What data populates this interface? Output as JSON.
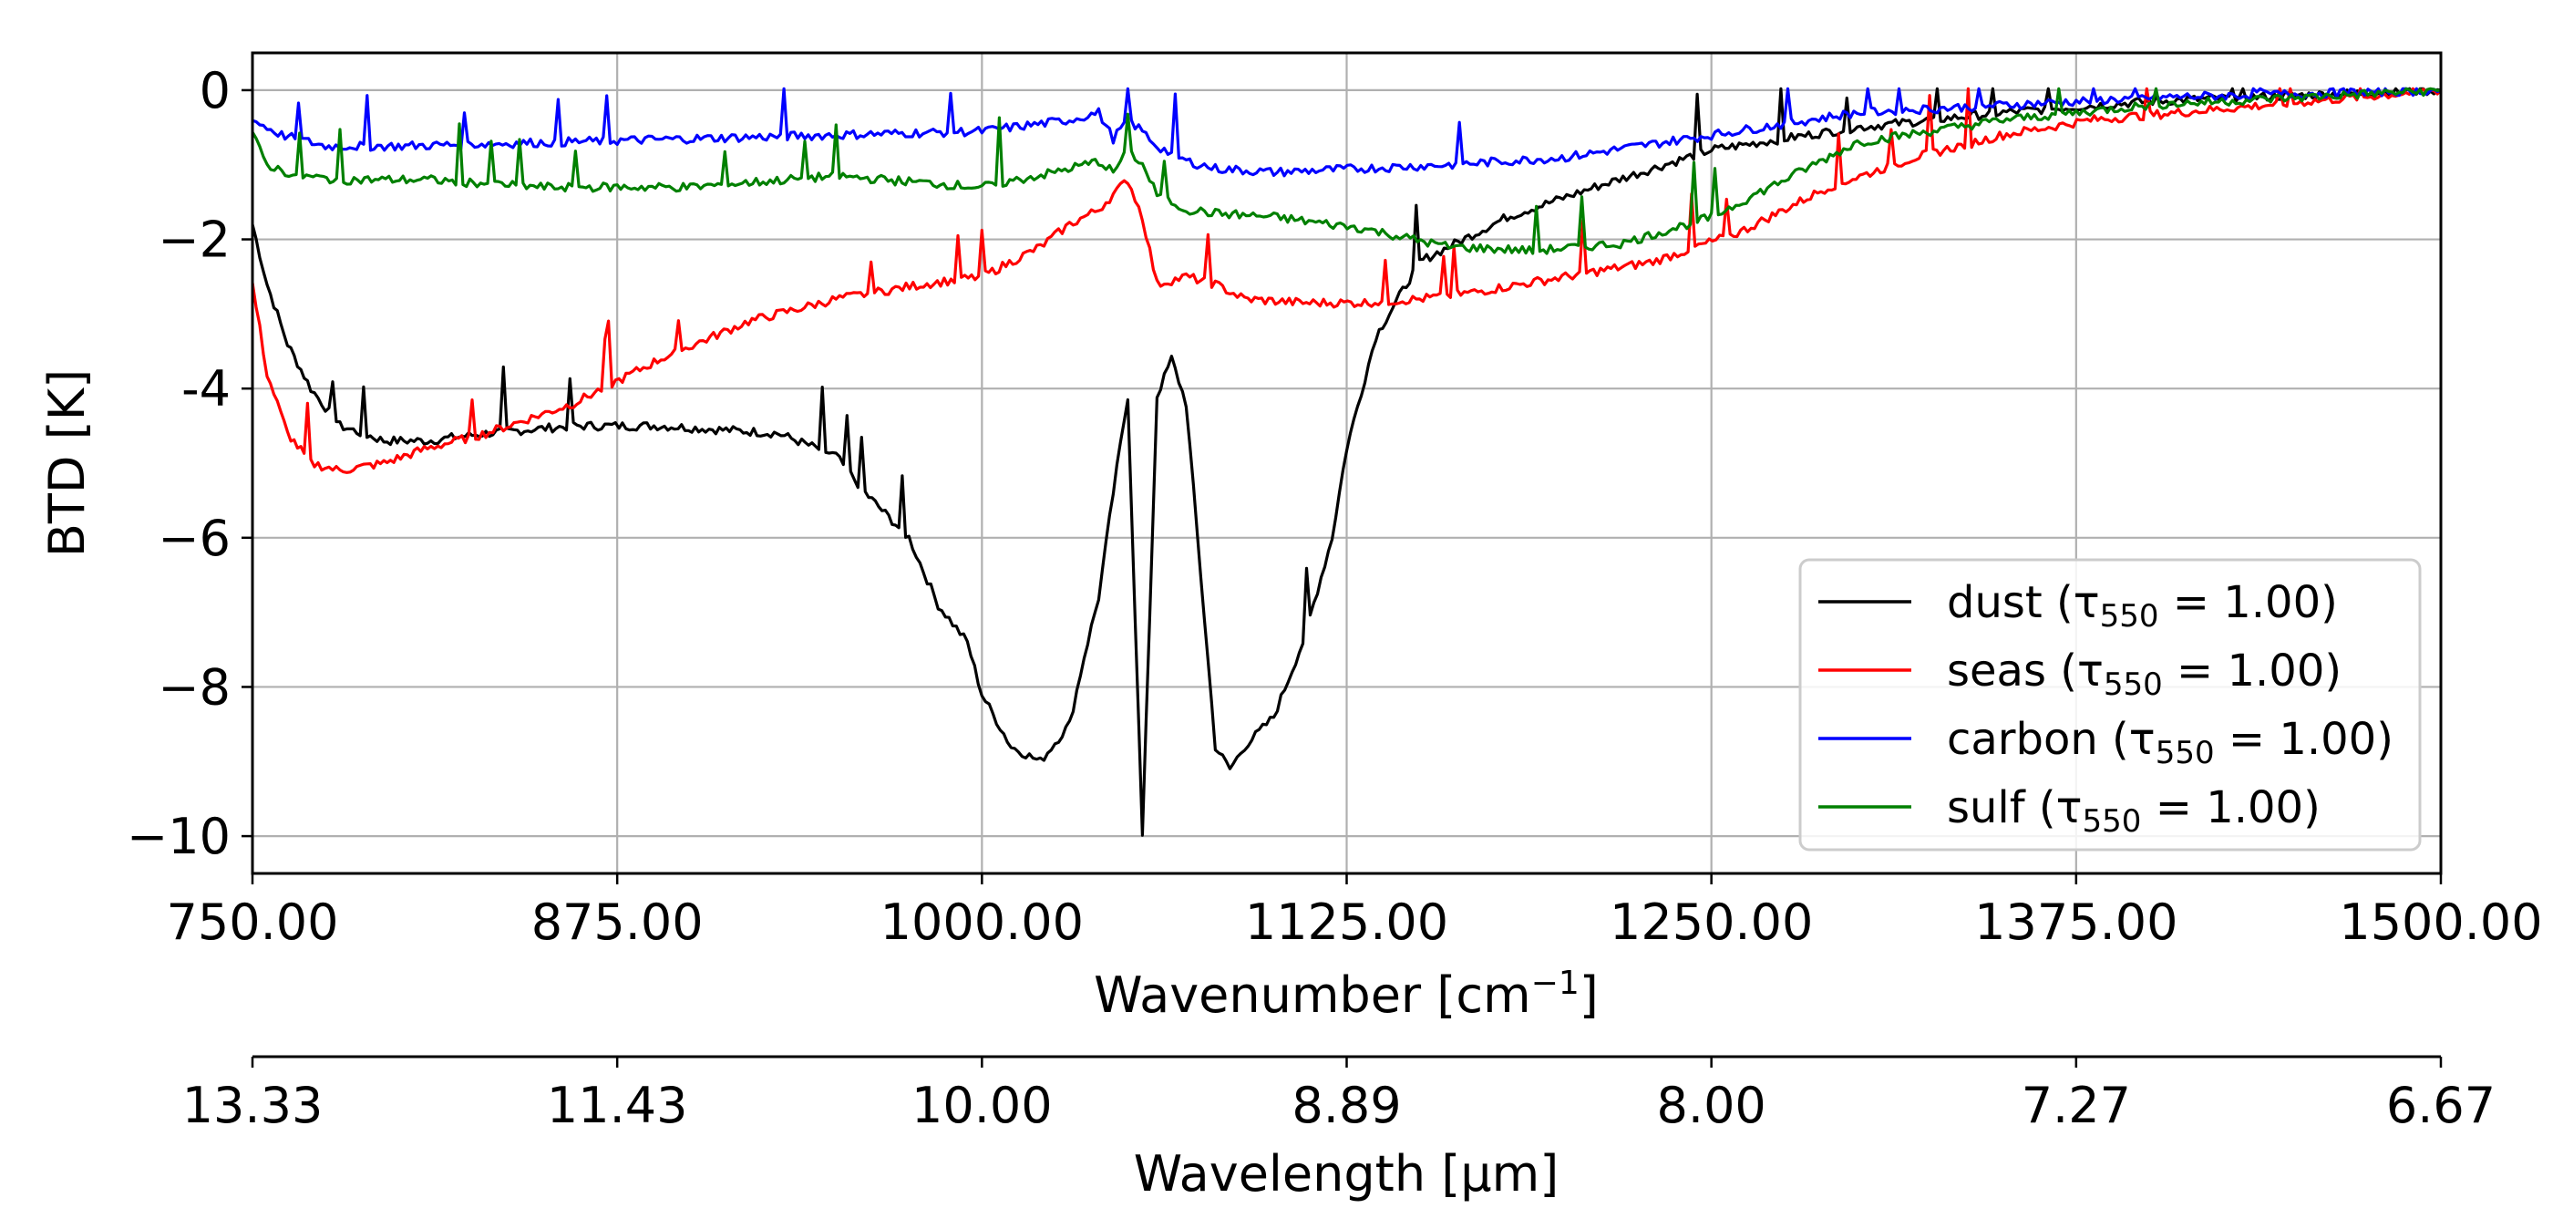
{
  "chart_data": {
    "type": "line",
    "xlabel": "Wavenumber [cm",
    "xlabel_sup": "−1",
    "xlabel_tail": "]",
    "ylabel": "BTD [K]",
    "xlim": [
      750,
      1500
    ],
    "ylim": [
      -10.5,
      0.5
    ],
    "grid": true,
    "x_ticks": [
      "750.00",
      "875.00",
      "1000.00",
      "1125.00",
      "1250.00",
      "1375.00",
      "1500.00"
    ],
    "y_ticks": [
      {
        "value": 0,
        "label": "0"
      },
      {
        "value": -2,
        "label": "−2"
      },
      {
        "value": -4,
        "label": "-4"
      },
      {
        "value": -6,
        "label": "−6"
      },
      {
        "value": -8,
        "label": "−8"
      },
      {
        "value": -10,
        "label": "−10"
      }
    ],
    "secondary_axis": {
      "label": "Wavelength [µm]",
      "tick_labels": [
        "13.33",
        "11.43",
        "10.00",
        "8.89",
        "8.00",
        "7.27",
        "6.67"
      ]
    },
    "legend_placement": "lower-right",
    "series": [
      {
        "name": "dust",
        "legend_prefix": "dust (τ",
        "legend_sub": "550",
        "legend_suffix": " = 1.00)",
        "color": "#000000",
        "x": [
          750,
          755,
          762,
          770,
          780,
          795,
          810,
          830,
          860,
          890,
          910,
          930,
          950,
          960,
          975,
          985,
          995,
          1000,
          1010,
          1020,
          1030,
          1035,
          1040,
          1045,
          1050,
          1055,
          1060,
          1065,
          1070,
          1075,
          1080,
          1085,
          1090,
          1100,
          1110,
          1120,
          1125,
          1135,
          1150,
          1180,
          1210,
          1250,
          1300,
          1350,
          1400,
          1450,
          1500
        ],
        "y": [
          -1.8,
          -2.6,
          -3.4,
          -4.0,
          -4.5,
          -4.7,
          -4.7,
          -4.6,
          -4.5,
          -4.5,
          -4.55,
          -4.6,
          -4.9,
          -5.4,
          -6.0,
          -6.9,
          -7.4,
          -8.1,
          -8.8,
          -9.0,
          -8.5,
          -7.6,
          -6.8,
          -5.4,
          -4.1,
          -10.0,
          -4.1,
          -3.6,
          -4.2,
          -6.5,
          -8.8,
          -9.1,
          -8.8,
          -8.4,
          -7.4,
          -6.0,
          -4.8,
          -3.3,
          -2.3,
          -1.7,
          -1.3,
          -0.8,
          -0.5,
          -0.3,
          -0.15,
          -0.07,
          0.0
        ]
      },
      {
        "name": "seas",
        "legend_prefix": "seas (τ",
        "legend_sub": "550",
        "legend_suffix": " = 1.00)",
        "color": "#ff0000",
        "x": [
          750,
          755,
          762,
          770,
          780,
          795,
          810,
          830,
          860,
          890,
          920,
          950,
          980,
          1000,
          1020,
          1030,
          1040,
          1045,
          1050,
          1055,
          1060,
          1070,
          1080,
          1090,
          1110,
          1130,
          1150,
          1170,
          1200,
          1230,
          1260,
          1290,
          1320,
          1350,
          1380,
          1410,
          1440,
          1470,
          1500
        ],
        "y": [
          -2.6,
          -3.8,
          -4.6,
          -5.0,
          -5.1,
          -5.0,
          -4.8,
          -4.6,
          -4.2,
          -3.6,
          -3.1,
          -2.8,
          -2.6,
          -2.5,
          -2.1,
          -1.8,
          -1.6,
          -1.4,
          -1.2,
          -1.7,
          -2.6,
          -2.5,
          -2.6,
          -2.8,
          -2.85,
          -2.85,
          -2.8,
          -2.7,
          -2.5,
          -2.3,
          -1.9,
          -1.3,
          -0.9,
          -0.6,
          -0.4,
          -0.3,
          -0.2,
          -0.1,
          0.0
        ]
      },
      {
        "name": "carbon",
        "legend_prefix": "carbon (τ",
        "legend_sub": "550",
        "legend_suffix": " = 1.00)",
        "color": "#0000ff",
        "x": [
          750,
          760,
          775,
          800,
          850,
          900,
          950,
          1000,
          1030,
          1040,
          1045,
          1050,
          1055,
          1060,
          1070,
          1080,
          1100,
          1130,
          1160,
          1200,
          1250,
          1300,
          1350,
          1400,
          1450,
          1500
        ],
        "y": [
          -0.4,
          -0.6,
          -0.75,
          -0.75,
          -0.7,
          -0.65,
          -0.6,
          -0.55,
          -0.4,
          -0.3,
          -0.65,
          -0.4,
          -0.55,
          -0.75,
          -0.95,
          -1.05,
          -1.1,
          -1.05,
          -1.0,
          -0.9,
          -0.6,
          -0.3,
          -0.2,
          -0.1,
          -0.05,
          0.0
        ]
      },
      {
        "name": "sulf",
        "legend_prefix": "sulf (τ",
        "legend_sub": "550",
        "legend_suffix": " = 1.00)",
        "color": "#008000",
        "x": [
          750,
          755,
          765,
          780,
          810,
          850,
          900,
          950,
          1000,
          1025,
          1040,
          1045,
          1050,
          1055,
          1060,
          1070,
          1080,
          1100,
          1130,
          1160,
          1190,
          1220,
          1250,
          1280,
          1300,
          1350,
          1400,
          1450,
          1500
        ],
        "y": [
          -0.6,
          -1.0,
          -1.15,
          -1.2,
          -1.2,
          -1.3,
          -1.3,
          -1.15,
          -1.3,
          -1.1,
          -0.95,
          -1.1,
          -0.8,
          -1.0,
          -1.4,
          -1.6,
          -1.65,
          -1.7,
          -1.85,
          -2.1,
          -2.15,
          -2.05,
          -1.7,
          -1.1,
          -0.7,
          -0.4,
          -0.2,
          -0.1,
          0.0
        ]
      }
    ]
  }
}
